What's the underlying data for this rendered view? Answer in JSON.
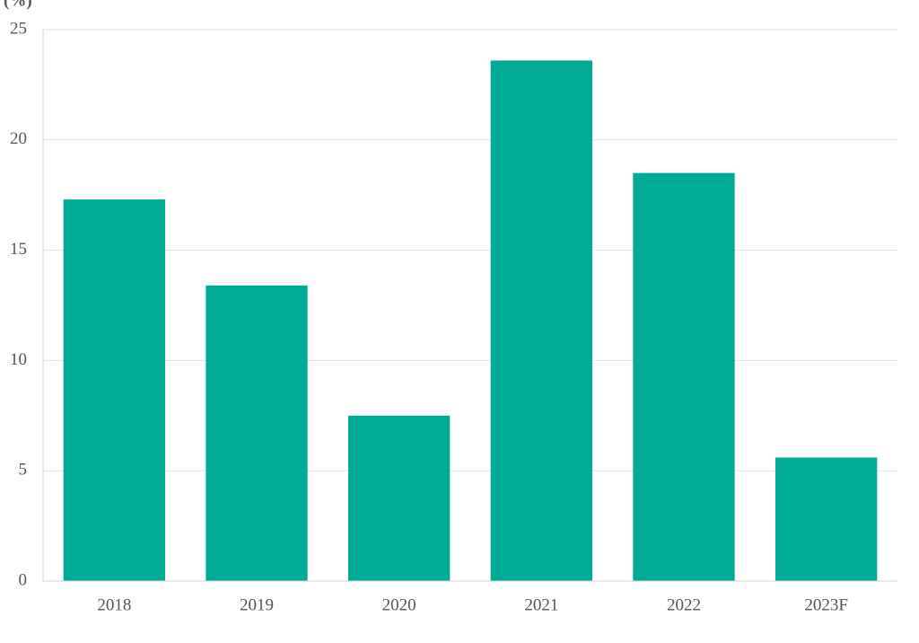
{
  "chart_data": {
    "type": "bar",
    "y_label": "(%)",
    "categories": [
      "2018",
      "2019",
      "2020",
      "2021",
      "2022",
      "2023F"
    ],
    "values": [
      17.3,
      13.4,
      7.5,
      23.6,
      18.5,
      5.6
    ],
    "color": "#00ab96",
    "ylim": [
      0,
      25
    ],
    "yticks": [
      0,
      5,
      10,
      15,
      20,
      25
    ],
    "grid": true
  }
}
